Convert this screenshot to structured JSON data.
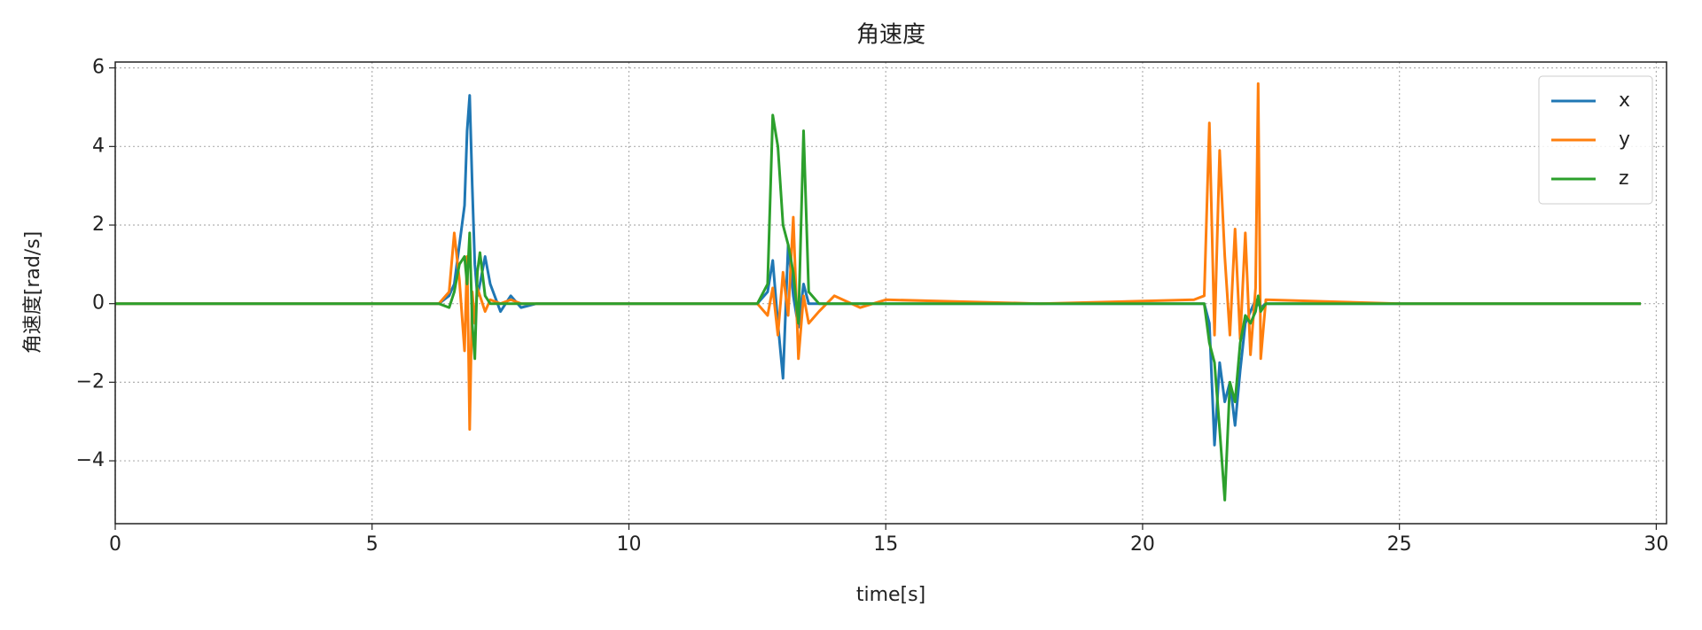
{
  "chart_data": {
    "type": "line",
    "title": "角速度",
    "x_label": "time[s]",
    "y_label": "角速度[rad/s]",
    "x": [
      0,
      6.3,
      6.5,
      6.6,
      6.7,
      6.8,
      6.85,
      6.9,
      6.95,
      7.0,
      7.05,
      7.1,
      7.2,
      7.3,
      7.5,
      7.7,
      7.9,
      8.2,
      10,
      12.5,
      12.7,
      12.8,
      12.9,
      13.0,
      13.1,
      13.2,
      13.3,
      13.4,
      13.5,
      13.7,
      14.0,
      14.5,
      15,
      18,
      21.0,
      21.2,
      21.3,
      21.4,
      21.5,
      21.6,
      21.7,
      21.8,
      21.9,
      22.0,
      22.1,
      22.2,
      22.25,
      22.3,
      22.4,
      25,
      29.7
    ],
    "series": [
      {
        "name": "x",
        "color": "#1f77b4",
        "values": [
          0,
          0,
          0.2,
          0.5,
          1.5,
          2.5,
          4.4,
          5.3,
          3.0,
          1.0,
          0.2,
          0.5,
          1.2,
          0.5,
          -0.2,
          0.2,
          -0.1,
          0,
          0,
          0,
          0.3,
          1.1,
          -0.5,
          -1.9,
          1.5,
          0.2,
          -0.6,
          0.5,
          0,
          0,
          0,
          0,
          0,
          0,
          0,
          0,
          -0.5,
          -3.6,
          -1.5,
          -2.5,
          -2.0,
          -3.1,
          -1.7,
          -0.5,
          -0.2,
          0.1,
          0,
          -0.1,
          0,
          0,
          0
        ]
      },
      {
        "name": "y",
        "color": "#ff7f0e",
        "values": [
          0,
          0,
          0.3,
          1.8,
          0.6,
          -1.2,
          1.2,
          -3.2,
          0.3,
          -0.5,
          0.4,
          0.2,
          -0.2,
          0.1,
          0,
          0.1,
          0,
          0,
          0,
          0,
          -0.3,
          0.4,
          -0.8,
          0.8,
          -0.3,
          2.2,
          -1.4,
          0.2,
          -0.5,
          -0.2,
          0.2,
          -0.1,
          0.1,
          0,
          0.1,
          0.2,
          4.6,
          -0.8,
          3.9,
          1.2,
          -0.8,
          1.9,
          -0.9,
          1.8,
          -1.3,
          0.4,
          5.6,
          -1.4,
          0.1,
          0,
          0
        ]
      },
      {
        "name": "z",
        "color": "#2ca02c",
        "values": [
          0,
          0,
          -0.1,
          0.3,
          1.0,
          1.2,
          0.5,
          1.8,
          -0.5,
          -1.4,
          0.8,
          1.3,
          0.2,
          0,
          0,
          0,
          0,
          0,
          0,
          0,
          0.5,
          4.8,
          4.0,
          2.0,
          1.5,
          0.8,
          -0.5,
          4.4,
          0.3,
          0,
          0,
          0,
          0,
          0,
          0,
          0,
          -1.0,
          -1.5,
          -3.2,
          -5.0,
          -2.0,
          -2.5,
          -1.0,
          -0.3,
          -0.5,
          -0.2,
          0.2,
          -0.2,
          0,
          0,
          0
        ]
      }
    ],
    "xlim": [
      0,
      30.2
    ],
    "ylim": [
      -5.6,
      6.15
    ],
    "xticks": [
      0,
      5,
      10,
      15,
      20,
      25,
      30
    ],
    "yticks": [
      {
        "value": -4,
        "label": "−4"
      },
      {
        "value": -2,
        "label": "−2"
      },
      0,
      2,
      4,
      6
    ],
    "grid": true,
    "legend": "upper right"
  }
}
